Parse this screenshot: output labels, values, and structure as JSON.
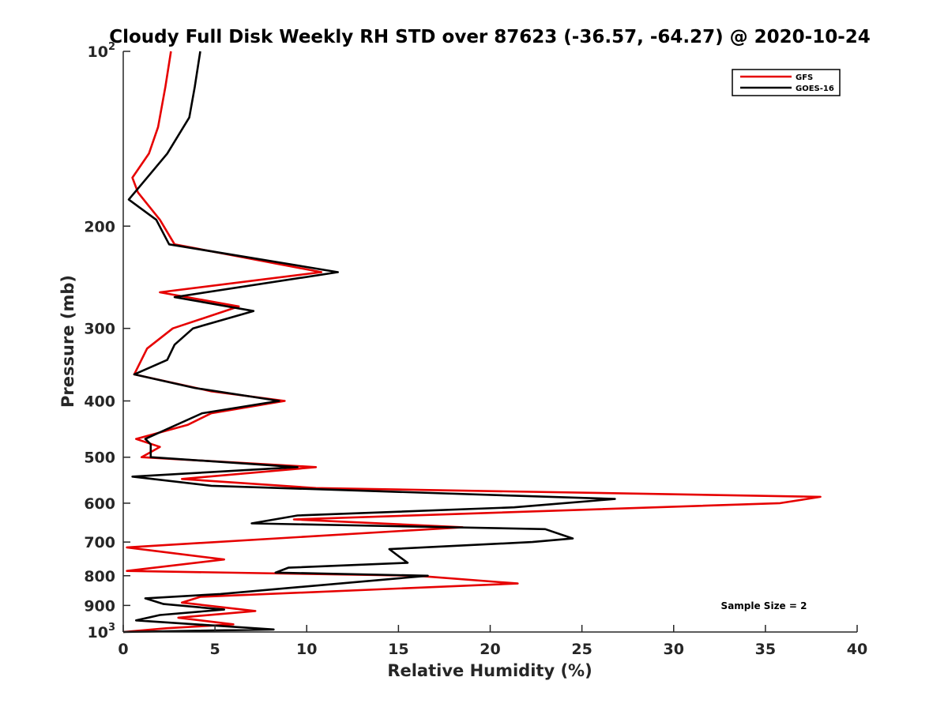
{
  "chart_data": {
    "type": "line",
    "title": "Cloudy Full Disk Weekly RH STD over 87623 (-36.57, -64.27) @ 2020-10-24",
    "xlabel": "Relative Humidity (%)",
    "ylabel": "Pressure (mb)",
    "xlim": [
      0,
      40
    ],
    "ylim": [
      100,
      1000
    ],
    "y_scale": "log",
    "y_reversed": true,
    "grid": false,
    "legend_position": "top-right",
    "x_ticks": [
      0,
      5,
      10,
      15,
      20,
      25,
      30,
      35,
      40
    ],
    "y_ticks": [
      {
        "value": 100,
        "label": "10",
        "sup": "2"
      },
      {
        "value": 200,
        "label": "200",
        "sup": ""
      },
      {
        "value": 300,
        "label": "300",
        "sup": ""
      },
      {
        "value": 400,
        "label": "400",
        "sup": ""
      },
      {
        "value": 500,
        "label": "500",
        "sup": ""
      },
      {
        "value": 600,
        "label": "600",
        "sup": ""
      },
      {
        "value": 700,
        "label": "700",
        "sup": ""
      },
      {
        "value": 800,
        "label": "800",
        "sup": ""
      },
      {
        "value": 900,
        "label": "900",
        "sup": ""
      },
      {
        "value": 1000,
        "label": "10",
        "sup": "3"
      }
    ],
    "annotation": "Sample Size = 2",
    "series": [
      {
        "name": "GFS",
        "color": "#e60000",
        "points": [
          [
            2.6,
            100
          ],
          [
            2.3,
            115
          ],
          [
            1.9,
            135
          ],
          [
            1.4,
            150
          ],
          [
            0.5,
            165
          ],
          [
            0.8,
            175
          ],
          [
            2.0,
            195
          ],
          [
            2.8,
            215
          ],
          [
            10.8,
            240
          ],
          [
            2.0,
            260
          ],
          [
            6.3,
            275
          ],
          [
            2.7,
            300
          ],
          [
            1.3,
            325
          ],
          [
            0.6,
            360
          ],
          [
            4.8,
            385
          ],
          [
            8.8,
            400
          ],
          [
            4.8,
            420
          ],
          [
            3.5,
            440
          ],
          [
            0.7,
            465
          ],
          [
            2.0,
            480
          ],
          [
            1.0,
            500
          ],
          [
            10.5,
            520
          ],
          [
            3.2,
            545
          ],
          [
            10.5,
            565
          ],
          [
            38.0,
            585
          ],
          [
            35.8,
            600
          ],
          [
            9.3,
            640
          ],
          [
            18.5,
            660
          ],
          [
            0.2,
            715
          ],
          [
            5.5,
            750
          ],
          [
            0.2,
            785
          ],
          [
            16.0,
            800
          ],
          [
            21.5,
            825
          ],
          [
            4.2,
            870
          ],
          [
            3.2,
            890
          ],
          [
            7.2,
            920
          ],
          [
            3.0,
            945
          ],
          [
            6.0,
            970
          ],
          [
            2.4,
            985
          ],
          [
            0.0,
            1000
          ]
        ]
      },
      {
        "name": "GOES-16",
        "color": "#000000",
        "points": [
          [
            4.2,
            100
          ],
          [
            3.9,
            115
          ],
          [
            3.6,
            130
          ],
          [
            2.4,
            150
          ],
          [
            1.3,
            165
          ],
          [
            0.3,
            180
          ],
          [
            1.8,
            195
          ],
          [
            2.5,
            215
          ],
          [
            11.7,
            240
          ],
          [
            2.8,
            265
          ],
          [
            7.1,
            280
          ],
          [
            3.8,
            300
          ],
          [
            2.8,
            320
          ],
          [
            2.4,
            340
          ],
          [
            0.6,
            360
          ],
          [
            3.9,
            380
          ],
          [
            8.5,
            400
          ],
          [
            4.3,
            420
          ],
          [
            1.2,
            465
          ],
          [
            1.5,
            475
          ],
          [
            1.5,
            500
          ],
          [
            9.5,
            520
          ],
          [
            0.5,
            540
          ],
          [
            4.8,
            560
          ],
          [
            26.8,
            590
          ],
          [
            21.3,
            610
          ],
          [
            9.5,
            630
          ],
          [
            7.0,
            650
          ],
          [
            23.0,
            665
          ],
          [
            24.5,
            690
          ],
          [
            22.3,
            700
          ],
          [
            14.5,
            720
          ],
          [
            15.0,
            740
          ],
          [
            15.5,
            760
          ],
          [
            9.0,
            775
          ],
          [
            8.3,
            790
          ],
          [
            16.6,
            800
          ],
          [
            5.3,
            860
          ],
          [
            1.2,
            875
          ],
          [
            2.2,
            895
          ],
          [
            5.5,
            915
          ],
          [
            2.0,
            935
          ],
          [
            0.7,
            955
          ],
          [
            8.2,
            990
          ],
          [
            0.0,
            1000
          ]
        ]
      }
    ]
  }
}
